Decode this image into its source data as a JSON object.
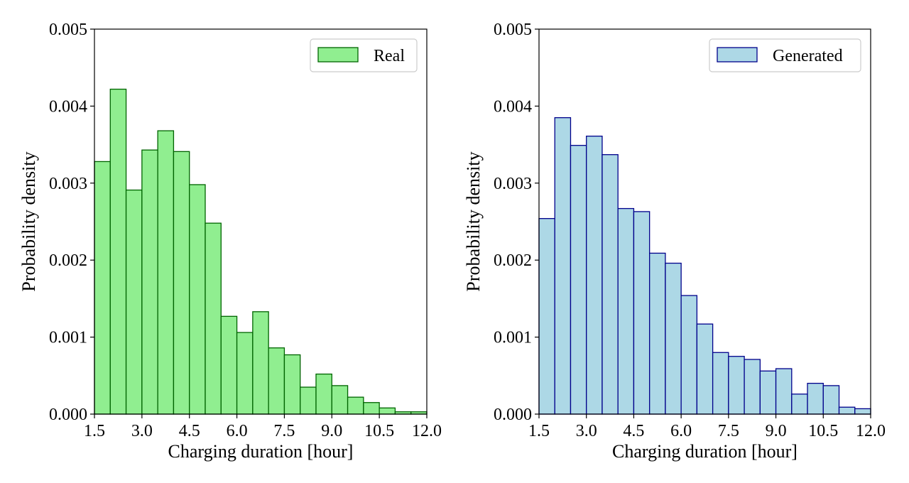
{
  "chart_data": [
    {
      "type": "bar",
      "legend": "Real",
      "legend_position": "top-right",
      "fill_color": "#90EE90",
      "edge_color": "#006400",
      "xlabel": "Charging duration [hour]",
      "ylabel": "Probability density",
      "xlim": [
        1.5,
        12.0
      ],
      "ylim": [
        0.0,
        0.005
      ],
      "xticks": [
        "1.5",
        "3.0",
        "4.5",
        "6.0",
        "7.5",
        "9.0",
        "10.5",
        "12.0"
      ],
      "yticks": [
        "0.000",
        "0.001",
        "0.002",
        "0.003",
        "0.004",
        "0.005"
      ],
      "bin_edges": [
        1.5,
        2.0,
        2.5,
        3.0,
        3.5,
        4.0,
        4.5,
        5.0,
        5.5,
        6.0,
        6.5,
        7.0,
        7.5,
        8.0,
        8.5,
        9.0,
        9.5,
        10.0,
        10.5,
        11.0,
        11.5,
        12.0
      ],
      "values": [
        0.00328,
        0.00422,
        0.00291,
        0.00343,
        0.00368,
        0.00341,
        0.00298,
        0.00248,
        0.00127,
        0.00106,
        0.00133,
        0.00086,
        0.00077,
        0.00035,
        0.00052,
        0.00037,
        0.00022,
        0.00015,
        8e-05,
        3e-05,
        3e-05
      ]
    },
    {
      "type": "bar",
      "legend": "Generated",
      "legend_position": "top-right",
      "fill_color": "#ADD8E6",
      "edge_color": "#00008B",
      "xlabel": "Charging duration [hour]",
      "ylabel": "Probability density",
      "xlim": [
        1.5,
        12.0
      ],
      "ylim": [
        0.0,
        0.005
      ],
      "xticks": [
        "1.5",
        "3.0",
        "4.5",
        "6.0",
        "7.5",
        "9.0",
        "10.5",
        "12.0"
      ],
      "yticks": [
        "0.000",
        "0.001",
        "0.002",
        "0.003",
        "0.004",
        "0.005"
      ],
      "bin_edges": [
        1.5,
        2.0,
        2.5,
        3.0,
        3.5,
        4.0,
        4.5,
        5.0,
        5.5,
        6.0,
        6.5,
        7.0,
        7.5,
        8.0,
        8.5,
        9.0,
        9.5,
        10.0,
        10.5,
        11.0,
        11.5,
        12.0
      ],
      "values": [
        0.00254,
        0.00385,
        0.00349,
        0.00361,
        0.00337,
        0.00267,
        0.00263,
        0.00209,
        0.00196,
        0.00154,
        0.00117,
        0.0008,
        0.00075,
        0.00071,
        0.00056,
        0.00059,
        0.00026,
        0.0004,
        0.00037,
        9e-05,
        7e-05
      ]
    }
  ]
}
